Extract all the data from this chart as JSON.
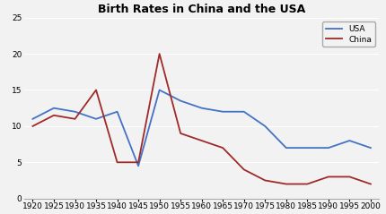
{
  "title": "Birth Rates in China and the USA",
  "years": [
    1920,
    1925,
    1930,
    1935,
    1940,
    1945,
    1950,
    1955,
    1960,
    1965,
    1970,
    1975,
    1980,
    1985,
    1990,
    1995,
    2000
  ],
  "usa": [
    11,
    12.5,
    12,
    11,
    12,
    4.5,
    15,
    13.5,
    12.5,
    12,
    12,
    10,
    7,
    7,
    7,
    8,
    7
  ],
  "china": [
    10,
    11.5,
    11,
    15,
    5,
    5,
    20,
    9,
    8,
    7,
    4,
    2.5,
    2,
    2,
    3,
    3,
    2
  ],
  "usa_color": "#4472c4",
  "china_color": "#9e2a2a",
  "ylim": [
    0,
    25
  ],
  "yticks": [
    0,
    5,
    10,
    15,
    20,
    25
  ],
  "background_color": "#f2f2f2",
  "plot_bg_color": "#f2f2f2",
  "grid_color": "#ffffff",
  "title_fontsize": 9,
  "tick_fontsize": 6.5,
  "legend_entries": [
    "USA",
    "China"
  ]
}
